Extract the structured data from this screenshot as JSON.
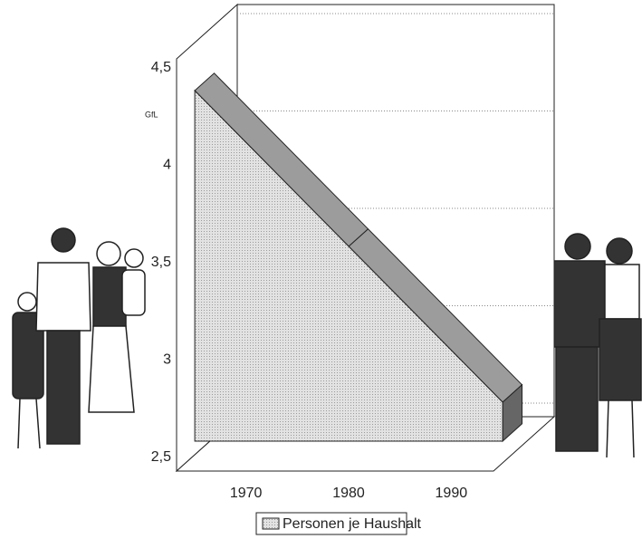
{
  "chart_data": {
    "type": "area3d",
    "logo": "GfL",
    "categories": [
      "1970",
      "1980",
      "1990"
    ],
    "series": [
      {
        "name": "Personen je Haushalt",
        "color": "#d4d4d4",
        "values": [
          4.3,
          3.5,
          2.7
        ]
      }
    ],
    "ylim": [
      2.5,
      4.5
    ],
    "yticks": [
      {
        "value": 2.5,
        "label": "2,5"
      },
      3,
      {
        "value": 3.5,
        "label": "3,5"
      },
      4,
      {
        "value": 4.5,
        "label": "4,5"
      }
    ],
    "grid": true,
    "legend": "bottom"
  }
}
